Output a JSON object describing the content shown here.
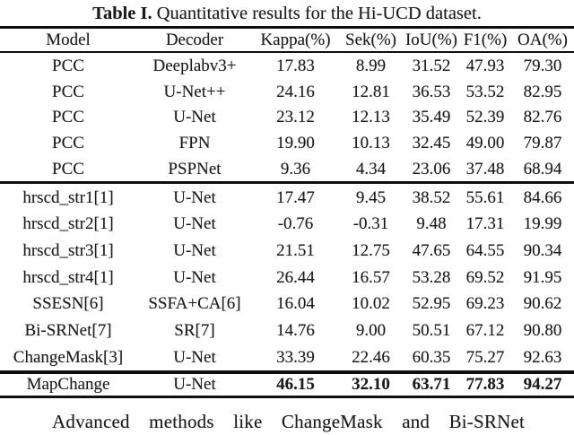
{
  "caption": {
    "label": "Table I.",
    "text": " Quantitative results for the Hi-UCD dataset."
  },
  "table": {
    "columns": [
      "Model",
      "Decoder",
      "Kappa(%)",
      "Sek(%)",
      "IoU(%)",
      "F1(%)",
      "OA(%)"
    ],
    "sections": [
      {
        "bold_values": false,
        "rows": [
          [
            "PCC",
            "Deeplabv3+",
            "17.83",
            "8.99",
            "31.52",
            "47.93",
            "79.30"
          ],
          [
            "PCC",
            "U-Net++",
            "24.16",
            "12.81",
            "36.53",
            "53.52",
            "82.95"
          ],
          [
            "PCC",
            "U-Net",
            "23.12",
            "12.13",
            "35.49",
            "52.39",
            "82.76"
          ],
          [
            "PCC",
            "FPN",
            "19.90",
            "10.13",
            "32.45",
            "49.00",
            "79.87"
          ],
          [
            "PCC",
            "PSPNet",
            "9.36",
            "4.34",
            "23.06",
            "37.48",
            "68.94"
          ]
        ]
      },
      {
        "bold_values": false,
        "rows": [
          [
            "hrscd_str1[1]",
            "U-Net",
            "17.47",
            "9.45",
            "38.52",
            "55.61",
            "84.66"
          ],
          [
            "hrscd_str2[1]",
            "U-Net",
            "-0.76",
            "-0.31",
            "9.48",
            "17.31",
            "19.99"
          ],
          [
            "hrscd_str3[1]",
            "U-Net",
            "21.51",
            "12.75",
            "47.65",
            "64.55",
            "90.34"
          ],
          [
            "hrscd_str4[1]",
            "U-Net",
            "26.44",
            "16.57",
            "53.28",
            "69.52",
            "91.95"
          ],
          [
            "SSESN[6]",
            "SSFA+CA[6]",
            "16.04",
            "10.02",
            "52.95",
            "69.23",
            "90.62"
          ],
          [
            "Bi-SRNet[7]",
            "SR[7]",
            "14.76",
            "9.00",
            "50.51",
            "67.12",
            "90.80"
          ],
          [
            "ChangeMask[3]",
            "U-Net",
            "33.39",
            "22.46",
            "60.35",
            "75.27",
            "92.63"
          ]
        ]
      },
      {
        "bold_values": true,
        "rows": [
          [
            "MapChange",
            "U-Net",
            "46.15",
            "32.10",
            "63.71",
            "77.83",
            "94.27"
          ]
        ]
      }
    ]
  },
  "paragraph": {
    "text": "Advanced methods like ChangeMask and Bi-SRNet"
  }
}
